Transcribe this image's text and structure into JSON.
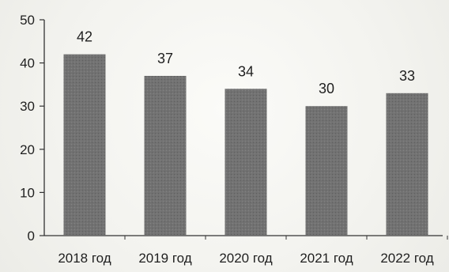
{
  "chart_data": {
    "type": "bar",
    "categories": [
      "2018 год",
      "2019 год",
      "2020 год",
      "2021 год",
      "2022 год"
    ],
    "values": [
      42,
      37,
      34,
      30,
      33
    ],
    "data_labels": [
      "42",
      "37",
      "34",
      "30",
      "33"
    ],
    "title": "",
    "xlabel": "",
    "ylabel": "",
    "ylim": [
      0,
      50
    ],
    "yticks": [
      0,
      10,
      20,
      30,
      40,
      50
    ],
    "ytick_labels": [
      "0",
      "10",
      "20",
      "30",
      "40",
      "50"
    ],
    "grid": false,
    "legend": "none",
    "colors": {
      "bar": "#6e6e6e",
      "axis": "#333333",
      "text": "#1f1f1f"
    }
  }
}
